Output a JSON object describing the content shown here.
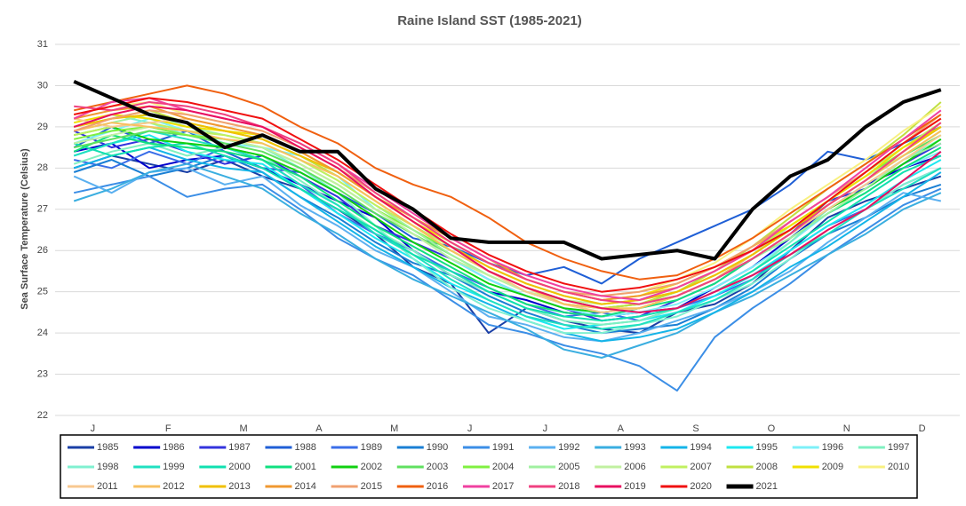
{
  "chart_data": {
    "type": "line",
    "title": "Raine Island SST (1985-2021)",
    "y_label": "Sea Surface Temperature (Celsius)",
    "categories": [
      "J",
      null,
      "F",
      null,
      "M",
      null,
      "A",
      null,
      "M",
      null,
      "J",
      null,
      "J",
      null,
      "A",
      null,
      "S",
      null,
      "O",
      null,
      "N",
      null,
      "D",
      null
    ],
    "ylim": [
      22,
      31
    ],
    "yticks": [
      22,
      23,
      24,
      25,
      26,
      27,
      28,
      29,
      30,
      31
    ],
    "grid": true,
    "series": [
      {
        "name": "1985",
        "color": "#1a3fa6",
        "values": [
          28.0,
          28.3,
          28.1,
          27.9,
          28.2,
          27.8,
          27.5,
          27.0,
          26.4,
          25.6,
          25.2,
          24.0,
          24.6,
          24.3,
          24.1,
          24.0,
          24.5,
          24.7,
          25.2,
          26.0,
          26.8,
          27.2,
          27.5,
          27.8
        ]
      },
      {
        "name": "1986",
        "color": "#0000cc",
        "values": [
          28.4,
          28.6,
          28.0,
          28.2,
          28.3,
          28.0,
          27.6,
          27.2,
          26.8,
          26.0,
          25.4,
          25.0,
          24.8,
          24.5,
          24.4,
          24.5,
          24.6,
          25.1,
          25.6,
          26.3,
          27.0,
          27.6,
          28.0,
          28.3
        ]
      },
      {
        "name": "1987",
        "color": "#3333dd",
        "values": [
          28.9,
          28.5,
          28.7,
          28.4,
          28.1,
          28.3,
          27.8,
          27.3,
          26.6,
          26.2,
          25.8,
          25.3,
          24.9,
          24.6,
          24.3,
          24.4,
          24.8,
          25.2,
          25.8,
          26.4,
          27.2,
          27.5,
          28.1,
          28.6
        ]
      },
      {
        "name": "1988",
        "color": "#1f5fd6",
        "values": [
          28.5,
          29.0,
          28.6,
          28.9,
          28.4,
          28.0,
          27.9,
          27.4,
          26.9,
          26.3,
          26.1,
          25.7,
          25.4,
          25.6,
          25.2,
          25.8,
          26.2,
          26.6,
          27.0,
          27.6,
          28.4,
          28.2,
          28.6,
          29.0
        ]
      },
      {
        "name": "1989",
        "color": "#3a6ee8",
        "values": [
          28.2,
          28.0,
          28.4,
          28.1,
          28.5,
          28.2,
          27.6,
          26.9,
          26.4,
          26.0,
          25.5,
          25.1,
          24.7,
          24.4,
          24.5,
          24.3,
          24.6,
          24.9,
          25.3,
          26.0,
          26.6,
          27.0,
          27.6,
          28.0
        ]
      },
      {
        "name": "1990",
        "color": "#1a7fd4",
        "values": [
          27.9,
          28.2,
          27.8,
          28.0,
          28.3,
          27.9,
          27.3,
          26.8,
          26.2,
          25.7,
          25.4,
          24.9,
          24.5,
          24.2,
          24.0,
          24.1,
          24.2,
          24.6,
          25.1,
          25.8,
          26.4,
          26.8,
          27.3,
          27.6
        ]
      },
      {
        "name": "1991",
        "color": "#3b8ee6",
        "values": [
          27.4,
          27.6,
          27.8,
          27.3,
          27.5,
          27.6,
          27.0,
          26.3,
          25.8,
          25.4,
          24.8,
          24.2,
          24.0,
          23.7,
          23.5,
          23.2,
          22.6,
          23.9,
          24.6,
          25.2,
          25.9,
          26.5,
          27.1,
          27.5
        ]
      },
      {
        "name": "1992",
        "color": "#5bb0f0",
        "values": [
          27.8,
          27.4,
          27.9,
          28.0,
          27.6,
          27.8,
          27.1,
          26.6,
          26.0,
          25.6,
          25.0,
          24.4,
          24.2,
          23.9,
          23.8,
          24.0,
          24.3,
          24.6,
          25.0,
          25.5,
          26.2,
          26.8,
          27.4,
          27.2
        ]
      },
      {
        "name": "1993",
        "color": "#3aaee0",
        "values": [
          27.2,
          27.5,
          27.9,
          28.1,
          27.8,
          27.5,
          26.9,
          26.4,
          25.8,
          25.3,
          24.9,
          24.5,
          24.1,
          23.6,
          23.4,
          23.7,
          24.0,
          24.5,
          24.9,
          25.4,
          25.9,
          26.4,
          27.0,
          27.4
        ]
      },
      {
        "name": "1994",
        "color": "#14b4e8",
        "values": [
          28.0,
          28.3,
          28.5,
          28.2,
          28.0,
          27.9,
          27.3,
          26.7,
          26.1,
          25.6,
          25.1,
          24.7,
          24.3,
          24.0,
          23.8,
          23.9,
          24.1,
          24.5,
          25.0,
          25.6,
          26.1,
          26.7,
          27.3,
          27.9
        ]
      },
      {
        "name": "1995",
        "color": "#1de8f0",
        "values": [
          28.3,
          28.6,
          28.8,
          28.4,
          28.2,
          28.1,
          27.5,
          26.9,
          26.3,
          25.8,
          25.2,
          24.8,
          24.4,
          24.1,
          24.2,
          24.3,
          24.5,
          24.9,
          25.4,
          26.0,
          26.6,
          27.1,
          27.7,
          28.2
        ]
      },
      {
        "name": "1996",
        "color": "#7df0f8",
        "values": [
          28.6,
          28.9,
          29.2,
          28.9,
          28.6,
          28.5,
          28.3,
          27.8,
          27.0,
          26.4,
          25.8,
          25.3,
          24.9,
          24.6,
          24.4,
          24.5,
          24.7,
          25.1,
          25.6,
          26.2,
          26.9,
          27.4,
          28.0,
          28.4
        ]
      },
      {
        "name": "1997",
        "color": "#7ff0c0",
        "values": [
          28.1,
          28.4,
          28.6,
          28.3,
          28.5,
          28.3,
          27.7,
          27.1,
          26.5,
          26.0,
          25.4,
          25.0,
          24.6,
          24.3,
          24.2,
          24.3,
          24.6,
          25.0,
          25.5,
          26.2,
          27.0,
          27.6,
          28.2,
          28.7
        ]
      },
      {
        "name": "1998",
        "color": "#80f0d0",
        "values": [
          29.0,
          29.3,
          29.1,
          28.8,
          28.7,
          28.5,
          28.0,
          27.4,
          26.6,
          25.8,
          25.1,
          24.6,
          24.3,
          24.0,
          24.0,
          24.2,
          24.4,
          24.8,
          25.2,
          25.8,
          26.5,
          27.0,
          27.6,
          28.0
        ]
      },
      {
        "name": "1999",
        "color": "#20e0c0",
        "values": [
          28.3,
          28.6,
          28.9,
          28.7,
          28.5,
          28.2,
          27.6,
          27.1,
          26.4,
          25.9,
          25.3,
          24.8,
          24.4,
          24.2,
          24.1,
          24.2,
          24.5,
          24.8,
          25.3,
          25.9,
          26.4,
          27.0,
          27.5,
          28.0
        ]
      },
      {
        "name": "2000",
        "color": "#10e0b0",
        "values": [
          28.6,
          28.3,
          28.5,
          28.6,
          28.3,
          28.0,
          27.5,
          27.0,
          26.5,
          25.9,
          25.5,
          25.0,
          24.6,
          24.4,
          24.3,
          24.4,
          24.6,
          25.0,
          25.5,
          26.1,
          26.7,
          27.3,
          27.9,
          28.3
        ]
      },
      {
        "name": "2001",
        "color": "#10e080",
        "values": [
          28.4,
          28.8,
          28.6,
          28.5,
          28.4,
          28.2,
          27.8,
          27.2,
          26.6,
          26.1,
          25.6,
          25.1,
          24.7,
          24.5,
          24.4,
          24.6,
          24.8,
          25.2,
          25.8,
          26.3,
          26.9,
          27.4,
          28.0,
          28.5
        ]
      },
      {
        "name": "2002",
        "color": "#10d010",
        "values": [
          28.8,
          29.0,
          28.7,
          28.6,
          28.5,
          28.3,
          27.9,
          27.4,
          26.8,
          26.2,
          25.7,
          25.2,
          24.9,
          24.6,
          24.5,
          24.6,
          24.9,
          25.3,
          25.8,
          26.4,
          27.0,
          27.5,
          28.1,
          28.7
        ]
      },
      {
        "name": "2003",
        "color": "#60e060",
        "values": [
          28.5,
          28.7,
          28.9,
          28.8,
          28.6,
          28.4,
          28.0,
          27.5,
          26.9,
          26.4,
          25.9,
          25.4,
          25.0,
          24.7,
          24.6,
          24.7,
          24.9,
          25.3,
          25.9,
          26.5,
          27.1,
          27.7,
          28.3,
          28.8
        ]
      },
      {
        "name": "2004",
        "color": "#80f040",
        "values": [
          28.7,
          28.9,
          29.0,
          28.8,
          28.7,
          28.5,
          28.1,
          27.6,
          27.0,
          26.5,
          26.0,
          25.5,
          25.1,
          24.8,
          24.6,
          24.7,
          25.0,
          25.4,
          25.9,
          26.5,
          27.2,
          27.8,
          28.4,
          29.0
        ]
      },
      {
        "name": "2005",
        "color": "#a0f0a0",
        "values": [
          28.9,
          29.1,
          29.3,
          29.0,
          28.8,
          28.6,
          28.2,
          27.7,
          27.1,
          26.5,
          25.9,
          25.4,
          25.0,
          24.7,
          24.5,
          24.6,
          24.9,
          25.3,
          25.8,
          26.3,
          26.9,
          27.5,
          28.2,
          28.6
        ]
      },
      {
        "name": "2006",
        "color": "#c0f0a0",
        "values": [
          28.6,
          28.8,
          29.0,
          28.9,
          28.7,
          28.5,
          28.1,
          27.6,
          27.0,
          26.4,
          25.8,
          25.4,
          25.0,
          24.8,
          24.7,
          24.8,
          25.0,
          25.4,
          25.9,
          26.6,
          27.2,
          27.8,
          28.3,
          28.9
        ]
      },
      {
        "name": "2007",
        "color": "#c0f060",
        "values": [
          28.8,
          29.0,
          29.1,
          28.9,
          28.8,
          28.6,
          28.2,
          27.7,
          27.1,
          26.6,
          26.1,
          25.6,
          25.2,
          24.9,
          24.7,
          24.8,
          25.1,
          25.5,
          26.0,
          26.6,
          27.2,
          27.9,
          28.5,
          29.1
        ]
      },
      {
        "name": "2008",
        "color": "#c0e040",
        "values": [
          29.0,
          29.2,
          29.4,
          29.1,
          28.9,
          28.7,
          28.3,
          27.8,
          27.2,
          26.6,
          26.0,
          25.5,
          25.1,
          24.8,
          24.6,
          24.7,
          25.0,
          25.5,
          26.1,
          26.8,
          27.5,
          28.1,
          28.8,
          29.6
        ]
      },
      {
        "name": "2009",
        "color": "#f0e000",
        "values": [
          29.1,
          29.3,
          29.2,
          29.0,
          28.9,
          28.8,
          28.4,
          27.9,
          27.3,
          26.7,
          26.2,
          25.7,
          25.3,
          25.0,
          24.8,
          24.9,
          25.2,
          25.6,
          26.1,
          26.6,
          27.2,
          27.8,
          28.5,
          29.0
        ]
      },
      {
        "name": "2010",
        "color": "#f8f080",
        "values": [
          29.3,
          29.5,
          29.6,
          29.3,
          29.1,
          28.9,
          28.5,
          28.0,
          27.4,
          26.8,
          26.2,
          25.7,
          25.3,
          25.0,
          24.9,
          25.0,
          25.3,
          25.7,
          26.3,
          27.0,
          27.6,
          28.2,
          28.9,
          29.5
        ]
      },
      {
        "name": "2011",
        "color": "#f8c890",
        "values": [
          29.2,
          29.0,
          29.1,
          29.2,
          29.0,
          28.8,
          28.4,
          27.9,
          27.3,
          26.7,
          26.1,
          25.5,
          25.0,
          24.7,
          24.5,
          24.6,
          24.9,
          25.3,
          25.8,
          26.4,
          27.0,
          27.6,
          28.2,
          28.8
        ]
      },
      {
        "name": "2012",
        "color": "#f8c060",
        "values": [
          28.9,
          29.1,
          29.0,
          28.9,
          28.7,
          28.6,
          28.2,
          27.8,
          27.2,
          26.6,
          26.0,
          25.5,
          25.1,
          24.7,
          24.6,
          24.6,
          24.9,
          25.3,
          25.9,
          26.5,
          27.1,
          27.7,
          28.3,
          28.9
        ]
      },
      {
        "name": "2013",
        "color": "#f0c000",
        "values": [
          29.0,
          29.2,
          29.3,
          29.1,
          28.9,
          28.7,
          28.3,
          27.9,
          27.3,
          26.7,
          26.1,
          25.6,
          25.2,
          24.9,
          24.7,
          24.8,
          25.0,
          25.4,
          25.9,
          26.5,
          27.1,
          27.7,
          28.4,
          29.0
        ]
      },
      {
        "name": "2014",
        "color": "#f09830",
        "values": [
          29.2,
          29.4,
          29.5,
          29.2,
          29.0,
          28.8,
          28.4,
          27.9,
          27.3,
          26.8,
          26.3,
          25.8,
          25.3,
          25.0,
          24.8,
          24.9,
          25.1,
          25.5,
          26.0,
          26.7,
          27.3,
          27.9,
          28.6,
          29.2
        ]
      },
      {
        "name": "2015",
        "color": "#f0a070",
        "values": [
          28.9,
          29.2,
          29.4,
          29.3,
          29.1,
          28.9,
          28.5,
          28.0,
          27.4,
          26.8,
          26.2,
          25.7,
          25.3,
          25.0,
          24.9,
          25.0,
          25.2,
          25.6,
          26.1,
          26.7,
          27.3,
          27.9,
          28.6,
          29.3
        ]
      },
      {
        "name": "2016",
        "color": "#f06010",
        "values": [
          29.4,
          29.6,
          29.8,
          30.0,
          29.8,
          29.5,
          29.0,
          28.6,
          28.0,
          27.6,
          27.3,
          26.8,
          26.2,
          25.8,
          25.5,
          25.3,
          25.4,
          25.8,
          26.3,
          26.9,
          27.5,
          28.1,
          28.7,
          29.3
        ]
      },
      {
        "name": "2017",
        "color": "#f040a0",
        "values": [
          29.2,
          29.6,
          29.7,
          29.4,
          29.2,
          29.0,
          28.6,
          28.1,
          27.5,
          26.9,
          26.3,
          25.8,
          25.4,
          25.1,
          24.9,
          24.8,
          25.1,
          25.5,
          26.0,
          26.7,
          27.3,
          28.0,
          28.7,
          29.4
        ]
      },
      {
        "name": "2018",
        "color": "#f04080",
        "values": [
          29.5,
          29.4,
          29.6,
          29.5,
          29.3,
          29.0,
          28.6,
          28.1,
          27.4,
          26.8,
          26.2,
          25.7,
          25.3,
          25.0,
          24.8,
          24.7,
          24.9,
          25.3,
          25.8,
          26.4,
          27.1,
          27.7,
          28.4,
          29.1
        ]
      },
      {
        "name": "2019",
        "color": "#e81060",
        "values": [
          29.0,
          29.3,
          29.5,
          29.4,
          29.2,
          29.0,
          28.5,
          28.0,
          27.3,
          26.7,
          26.1,
          25.5,
          25.1,
          24.8,
          24.6,
          24.5,
          24.6,
          25.0,
          25.4,
          25.9,
          26.5,
          27.0,
          27.7,
          28.4
        ]
      },
      {
        "name": "2020",
        "color": "#f01010",
        "values": [
          29.3,
          29.5,
          29.7,
          29.6,
          29.4,
          29.2,
          28.7,
          28.2,
          27.6,
          27.0,
          26.4,
          25.9,
          25.5,
          25.2,
          25.0,
          25.1,
          25.3,
          25.6,
          26.0,
          26.5,
          27.2,
          27.9,
          28.6,
          29.2
        ]
      },
      {
        "name": "2021",
        "color": "#000000",
        "values": [
          30.1,
          29.7,
          29.3,
          29.1,
          28.5,
          28.8,
          28.4,
          28.4,
          27.5,
          27.0,
          26.3,
          26.2,
          26.2,
          26.2,
          25.8,
          25.9,
          26.0,
          25.8,
          27.0,
          27.8,
          28.2,
          29.0,
          29.6,
          29.9
        ]
      }
    ]
  }
}
